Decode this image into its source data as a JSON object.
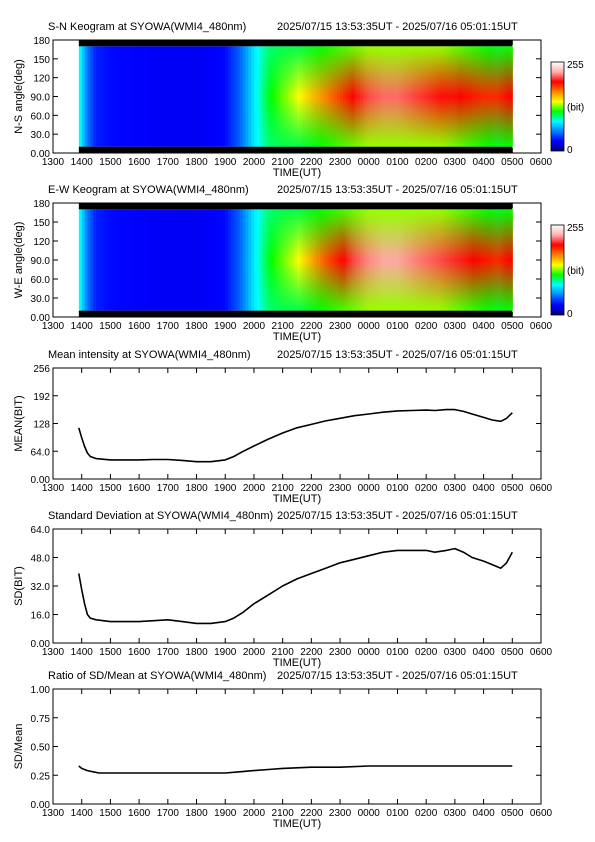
{
  "page": {
    "time_range": "2025/07/15 13:53:35UT - 2025/07/16 05:01:15UT"
  },
  "colors": {
    "line": "#000000",
    "frame": "#000000",
    "colormap": [
      "#000080",
      "#0000ff",
      "#0080ff",
      "#00ffff",
      "#00ff00",
      "#ffff00",
      "#ff8000",
      "#ff0000",
      "#ffb0b0",
      "#ffffff"
    ]
  },
  "chart_data": [
    {
      "id": "sn-keogram",
      "type": "heatmap",
      "title": "S-N Keogram at SYOWA(WMI4_480nm)",
      "xlabel": "TIME(UT)",
      "ylabel": "N-S angle(deg)",
      "x_ticks": [
        "1300",
        "1400",
        "1500",
        "1600",
        "1700",
        "1800",
        "1900",
        "2000",
        "2100",
        "2200",
        "2300",
        "0000",
        "0100",
        "0200",
        "0300",
        "0400",
        "0500",
        "0600"
      ],
      "y_ticks": [
        "0.00",
        "30.0",
        "60.0",
        "90.0",
        "120",
        "150",
        "180"
      ],
      "ylim": [
        0,
        180
      ],
      "colorbar": {
        "min_label": "0",
        "max_label": "255",
        "unit_label": "(bit)",
        "range": [
          0,
          255
        ]
      },
      "intensity_profile": {
        "hours": [
          13.9,
          14.2,
          14.5,
          15.0,
          16.0,
          17.0,
          18.0,
          19.0,
          19.5,
          20.0,
          20.5,
          21.0,
          21.5,
          22.0,
          22.5,
          23.0,
          23.5,
          24.0,
          24.5,
          25.0,
          25.5,
          26.0,
          26.5,
          27.0,
          27.5,
          28.0,
          28.5,
          29.0
        ],
        "center_bit": [
          90,
          55,
          35,
          30,
          28,
          26,
          26,
          30,
          50,
          80,
          110,
          125,
          140,
          155,
          170,
          185,
          200,
          210,
          215,
          215,
          210,
          205,
          200,
          200,
          195,
          190,
          190,
          200
        ],
        "edge_bit": [
          90,
          55,
          35,
          30,
          28,
          26,
          26,
          30,
          50,
          80,
          100,
          105,
          105,
          110,
          115,
          120,
          125,
          130,
          130,
          130,
          130,
          130,
          130,
          125,
          120,
          115,
          110,
          115
        ],
        "dark_band_low_deg": 10,
        "dark_band_high_deg": 170
      }
    },
    {
      "id": "ew-keogram",
      "type": "heatmap",
      "title": "E-W Keogram at SYOWA(WMI4_480nm)",
      "xlabel": "TIME(UT)",
      "ylabel": "W-E angle(deg)",
      "x_ticks": [
        "1300",
        "1400",
        "1500",
        "1600",
        "1700",
        "1800",
        "1900",
        "2000",
        "2100",
        "2200",
        "2300",
        "0000",
        "0100",
        "0200",
        "0300",
        "0400",
        "0500",
        "0600"
      ],
      "y_ticks": [
        "0.00",
        "30.0",
        "60.0",
        "90.0",
        "120",
        "150",
        "180"
      ],
      "ylim": [
        0,
        180
      ],
      "colorbar": {
        "min_label": "0",
        "max_label": "255",
        "unit_label": "(bit)",
        "range": [
          0,
          255
        ]
      },
      "intensity_profile": {
        "hours": [
          13.9,
          14.2,
          14.5,
          15.0,
          16.0,
          17.0,
          18.0,
          19.0,
          19.5,
          20.0,
          20.5,
          21.0,
          21.5,
          22.0,
          22.5,
          23.0,
          23.5,
          24.0,
          24.5,
          25.0,
          25.5,
          26.0,
          26.5,
          27.0,
          27.5,
          28.0,
          28.5,
          29.0
        ],
        "center_bit": [
          90,
          55,
          35,
          30,
          28,
          26,
          26,
          30,
          50,
          80,
          110,
          125,
          140,
          160,
          180,
          195,
          210,
          220,
          225,
          225,
          220,
          215,
          210,
          205,
          200,
          195,
          190,
          200
        ],
        "edge_bit": [
          90,
          55,
          35,
          30,
          28,
          26,
          26,
          30,
          50,
          80,
          100,
          105,
          105,
          110,
          115,
          120,
          125,
          130,
          130,
          130,
          130,
          130,
          130,
          125,
          120,
          115,
          110,
          115
        ],
        "dark_band_low_deg": 10,
        "dark_band_high_deg": 170
      }
    },
    {
      "id": "mean",
      "type": "line",
      "title": "Mean intensity at SYOWA(WMI4_480nm)",
      "xlabel": "TIME(UT)",
      "ylabel": "MEAN(BIT)",
      "x_ticks": [
        "1300",
        "1400",
        "1500",
        "1600",
        "1700",
        "1800",
        "1900",
        "2000",
        "2100",
        "2200",
        "2300",
        "0000",
        "0100",
        "0200",
        "0300",
        "0400",
        "0500",
        "0600"
      ],
      "y_ticks": [
        "0.00",
        "64.0",
        "128",
        "192",
        "256"
      ],
      "ylim": [
        0,
        256
      ],
      "x": [
        13.9,
        14.0,
        14.1,
        14.2,
        14.3,
        14.5,
        15.0,
        15.5,
        16.0,
        16.5,
        17.0,
        17.5,
        18.0,
        18.5,
        19.0,
        19.3,
        19.6,
        20.0,
        20.5,
        21.0,
        21.5,
        22.0,
        22.5,
        23.0,
        23.5,
        24.0,
        24.5,
        25.0,
        25.5,
        26.0,
        26.3,
        26.7,
        27.0,
        27.3,
        27.6,
        28.0,
        28.3,
        28.6,
        28.8,
        29.0
      ],
      "y": [
        118,
        95,
        75,
        60,
        52,
        47,
        44,
        44,
        44,
        45,
        45,
        43,
        40,
        40,
        44,
        52,
        63,
        76,
        92,
        106,
        118,
        126,
        134,
        140,
        146,
        150,
        154,
        157,
        158,
        159,
        158,
        160,
        160,
        156,
        150,
        142,
        136,
        133,
        140,
        153
      ]
    },
    {
      "id": "sd",
      "type": "line",
      "title": "Standard Deviation at SYOWA(WMI4_480nm)",
      "xlabel": "TIME(UT)",
      "ylabel": "SD(BIT)",
      "x_ticks": [
        "1300",
        "1400",
        "1500",
        "1600",
        "1700",
        "1800",
        "1900",
        "2000",
        "2100",
        "2200",
        "2300",
        "0000",
        "0100",
        "0200",
        "0300",
        "0400",
        "0500",
        "0600"
      ],
      "y_ticks": [
        "0.00",
        "16.0",
        "32.0",
        "48.0",
        "64.0"
      ],
      "ylim": [
        0,
        64
      ],
      "x": [
        13.9,
        14.0,
        14.1,
        14.2,
        14.3,
        14.5,
        15.0,
        15.5,
        16.0,
        16.5,
        17.0,
        17.5,
        18.0,
        18.5,
        19.0,
        19.3,
        19.6,
        20.0,
        20.5,
        21.0,
        21.5,
        22.0,
        22.5,
        23.0,
        23.5,
        24.0,
        24.5,
        25.0,
        25.5,
        26.0,
        26.3,
        26.7,
        27.0,
        27.3,
        27.6,
        28.0,
        28.3,
        28.6,
        28.8,
        29.0
      ],
      "y": [
        39,
        30,
        22,
        16,
        14,
        13,
        12,
        12,
        12,
        12.5,
        13,
        12,
        11,
        11,
        12,
        14,
        17,
        22,
        27,
        32,
        36,
        39,
        42,
        45,
        47,
        49,
        51,
        52,
        52,
        52,
        51,
        52,
        53,
        51,
        48,
        46,
        44,
        42,
        45,
        51
      ]
    },
    {
      "id": "ratio",
      "type": "line",
      "title": "Ratio of SD/Mean at SYOWA(WMI4_480nm)",
      "xlabel": "TIME(UT)",
      "ylabel": "SD/Mean",
      "x_ticks": [
        "1300",
        "1400",
        "1500",
        "1600",
        "1700",
        "1800",
        "1900",
        "2000",
        "2100",
        "2200",
        "2300",
        "0000",
        "0100",
        "0200",
        "0300",
        "0400",
        "0500",
        "0600"
      ],
      "y_ticks": [
        "0.00",
        "0.25",
        "0.50",
        "0.75",
        "1.00"
      ],
      "ylim": [
        0,
        1
      ],
      "x": [
        13.9,
        14.0,
        14.2,
        14.4,
        14.6,
        15.0,
        16.0,
        17.0,
        18.0,
        19.0,
        19.5,
        20.0,
        20.5,
        21.0,
        22.0,
        23.0,
        24.0,
        25.0,
        26.0,
        27.0,
        28.0,
        28.5,
        29.0
      ],
      "y": [
        0.33,
        0.31,
        0.29,
        0.28,
        0.27,
        0.27,
        0.27,
        0.27,
        0.27,
        0.27,
        0.28,
        0.29,
        0.3,
        0.31,
        0.32,
        0.32,
        0.33,
        0.33,
        0.33,
        0.33,
        0.33,
        0.33,
        0.33
      ]
    }
  ]
}
